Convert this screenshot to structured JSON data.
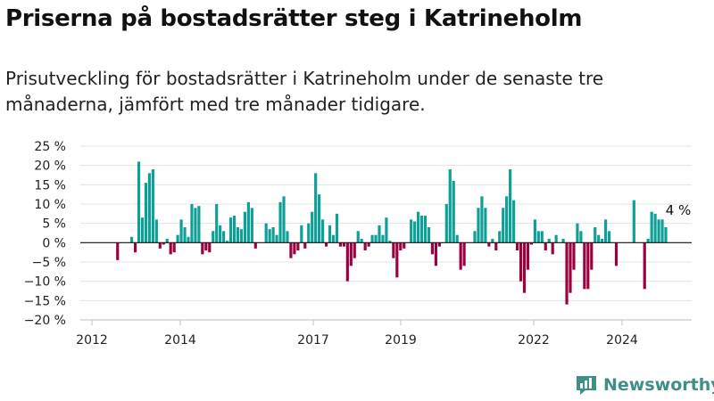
{
  "header": {
    "title": "Priserna på bostadsrätter steg i Katrineholm",
    "subtitle": "Prisutveckling för bostadsrätter i Katrineholm under de senaste tre månaderna, jämfört med tre månader tidigare."
  },
  "brand": {
    "name": "Newsworthy",
    "color": "#3f8f86",
    "icon": "bar-chart-logo-icon"
  },
  "colors": {
    "positive": "#0e9f97",
    "negative": "#9b0040"
  },
  "chart_data": {
    "type": "bar",
    "title": "Priserna på bostadsrätter steg i Katrineholm",
    "ylim": [
      -20,
      25
    ],
    "yticks": [
      25,
      20,
      15,
      10,
      5,
      0,
      -5,
      -10,
      -15,
      -20
    ],
    "ytick_labels": [
      "25 %",
      "20 %",
      "15 %",
      "10 %",
      "5 %",
      "0 %",
      "−5 %",
      "−10 %",
      "−15 %",
      "−20 %"
    ],
    "xticks": [
      "2012",
      "2014",
      "2017",
      "2019",
      "2022",
      "2024"
    ],
    "grid": true,
    "annotation": {
      "text": "4 %",
      "value": 4
    },
    "values": [
      0,
      0,
      0,
      0,
      0,
      0,
      0,
      -4.5,
      0,
      0,
      0,
      1.5,
      -2.5,
      21,
      6.5,
      15.5,
      18,
      19,
      6,
      -1.5,
      -0.5,
      1,
      -3,
      -2.5,
      2,
      6,
      4,
      1.5,
      10,
      9,
      9.5,
      -3,
      -2,
      -2.5,
      3,
      10,
      4.5,
      3,
      0.5,
      6.5,
      7,
      4,
      3.5,
      8,
      10.5,
      9,
      -1.5,
      0,
      0,
      5,
      3.5,
      4,
      2,
      10.5,
      12,
      3,
      -4,
      -3,
      -2,
      4.5,
      -1.5,
      5,
      8,
      18,
      12.5,
      6,
      -1,
      4.5,
      2,
      7.5,
      -1,
      -1,
      -10,
      -6,
      -4,
      3,
      1,
      -2,
      -1,
      2,
      2,
      4.5,
      2,
      6.5,
      0.5,
      -4,
      -9,
      -2,
      -1.5,
      0,
      6,
      5.5,
      8,
      7,
      7,
      4,
      -3,
      -6,
      -1,
      0,
      10,
      19,
      16,
      2,
      -7,
      -6,
      0,
      0,
      3,
      9,
      12,
      9,
      -1,
      1,
      -2,
      3,
      9,
      12,
      19,
      11,
      -2,
      -10,
      -13,
      -7,
      -0.5,
      6,
      3,
      3,
      -2,
      1,
      -3,
      2,
      0,
      1,
      -16,
      -13,
      -7,
      5,
      3,
      -12,
      -12,
      -7,
      4,
      2,
      1,
      6,
      3,
      0,
      -6,
      0,
      0,
      0,
      0,
      11,
      0,
      0,
      -12,
      1,
      8,
      7.5,
      6,
      6,
      4
    ]
  }
}
